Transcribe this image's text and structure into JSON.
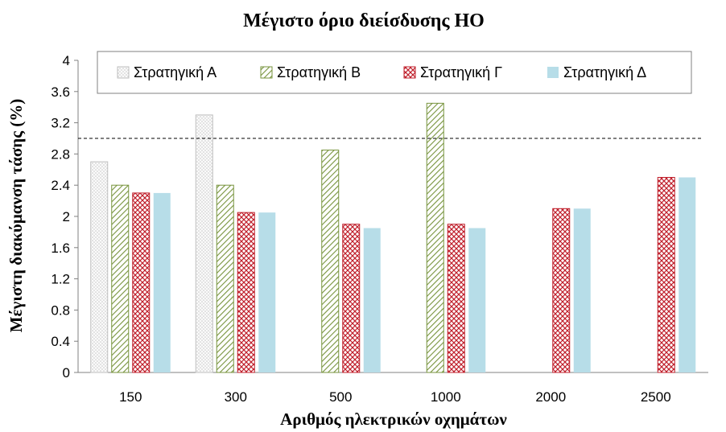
{
  "chart_data": {
    "type": "bar",
    "title": "Μέγιστο όριο διείσδυσης ΗΟ",
    "xlabel": "Αριθμός ηλεκτρικών οχημάτων",
    "ylabel": "Μέγιστη διακύμανση τάσης (%)",
    "categories": [
      "150",
      "300",
      "500",
      "1000",
      "2000",
      "2500"
    ],
    "ylim": [
      0,
      4
    ],
    "yticks": [
      0,
      0.4,
      0.8,
      1.2,
      1.6,
      2,
      2.4,
      2.8,
      3.2,
      3.6,
      4
    ],
    "ytick_labels": [
      "0",
      "0.4",
      "0.8",
      "1.2",
      "1.6",
      "2",
      "2.4",
      "2.8",
      "3.2",
      "3.6",
      "4"
    ],
    "reference_line": 3.0,
    "legend_position": "top",
    "grid": false,
    "series": [
      {
        "name": "Στρατηγική Α",
        "values": [
          2.7,
          3.3,
          null,
          null,
          null,
          null
        ],
        "fill": "#f4f4f4",
        "stroke": "#bfbfbf",
        "pattern": "dots"
      },
      {
        "name": "Στρατηγική Β",
        "values": [
          2.4,
          2.4,
          2.85,
          3.45,
          null,
          null
        ],
        "fill": "#ffffff",
        "stroke": "#77933c",
        "pattern": "diagonal"
      },
      {
        "name": "Στρατηγική Γ",
        "values": [
          2.3,
          2.05,
          1.9,
          1.9,
          2.1,
          2.5
        ],
        "fill": "#ffffff",
        "stroke": "#c0202c",
        "pattern": "crosshatch"
      },
      {
        "name": "Στρατηγική Δ",
        "values": [
          2.3,
          2.05,
          1.85,
          1.85,
          2.1,
          2.5
        ],
        "fill": "#b7dde8",
        "stroke": "#b7dde8",
        "pattern": "solid"
      }
    ]
  }
}
